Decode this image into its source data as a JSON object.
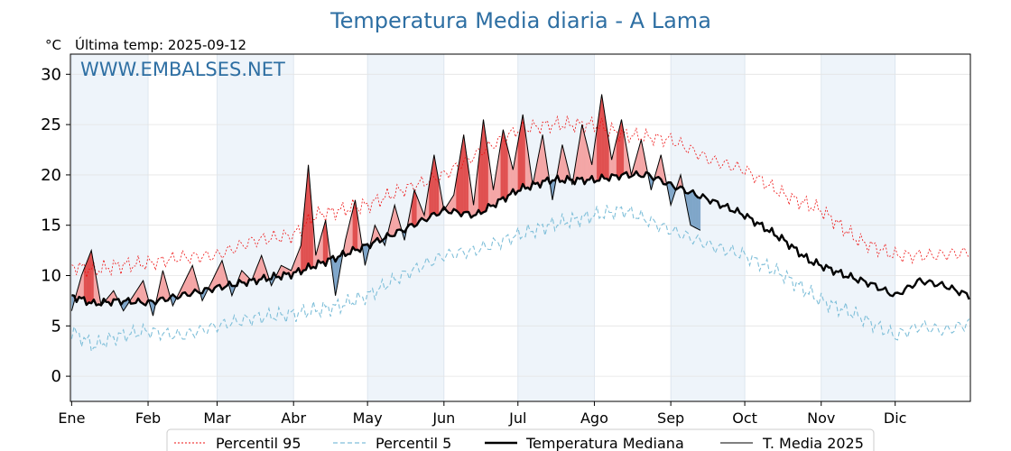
{
  "header": {
    "title": "Temperatura Media diaria - A Lama",
    "unit": "°C",
    "last_temp": "Última temp: 2025-09-12",
    "watermark": "WWW.EMBALSES.NET"
  },
  "colors": {
    "title": "#2e6fa3",
    "watermark": "#2e6fa3",
    "p95": "#ee1111",
    "p5": "#7fbfd9",
    "median": "#000000",
    "current": "#000000",
    "above_fill": "#f4a6a6",
    "above_strong": "#e05050",
    "below_fill": "#7fa6c9",
    "below_strong": "#2c5d8a",
    "month_band": "#eef4fa"
  },
  "chart_data": {
    "type": "line",
    "ylim": [
      -2.5,
      32
    ],
    "yticks": [
      0,
      5,
      10,
      15,
      20,
      25,
      30
    ],
    "months": [
      "Ene",
      "Feb",
      "Mar",
      "Abr",
      "May",
      "Jun",
      "Jul",
      "Ago",
      "Sep",
      "Oct",
      "Nov",
      "Dic"
    ],
    "month_start_days": [
      1,
      32,
      60,
      91,
      121,
      152,
      182,
      213,
      244,
      274,
      305,
      335
    ],
    "days_in_year": 365,
    "grid": true,
    "legend_position": "bottom",
    "series": [
      {
        "name": "Percentil 95",
        "style": "dotted-red",
        "keys": [
          [
            1,
            11.0
          ],
          [
            10,
            10.5
          ],
          [
            20,
            11.0
          ],
          [
            32,
            11.2
          ],
          [
            45,
            11.8
          ],
          [
            60,
            12.0
          ],
          [
            75,
            13.5
          ],
          [
            91,
            14.0
          ],
          [
            100,
            16.0
          ],
          [
            121,
            17.0
          ],
          [
            135,
            18.5
          ],
          [
            152,
            20.0
          ],
          [
            165,
            22.0
          ],
          [
            182,
            24.5
          ],
          [
            195,
            25.0
          ],
          [
            213,
            25.0
          ],
          [
            225,
            24.0
          ],
          [
            244,
            23.5
          ],
          [
            260,
            21.5
          ],
          [
            274,
            20.5
          ],
          [
            290,
            18.0
          ],
          [
            305,
            16.5
          ],
          [
            320,
            13.5
          ],
          [
            335,
            12.0
          ],
          [
            350,
            12.0
          ],
          [
            365,
            12.3
          ]
        ]
      },
      {
        "name": "Percentil 5",
        "style": "dashed-lightblue",
        "keys": [
          [
            1,
            4.5
          ],
          [
            10,
            3.0
          ],
          [
            20,
            4.0
          ],
          [
            32,
            4.5
          ],
          [
            45,
            4.0
          ],
          [
            60,
            5.0
          ],
          [
            75,
            5.8
          ],
          [
            91,
            6.2
          ],
          [
            110,
            7.0
          ],
          [
            121,
            8.0
          ],
          [
            135,
            10.0
          ],
          [
            152,
            12.0
          ],
          [
            165,
            12.5
          ],
          [
            182,
            14.0
          ],
          [
            195,
            15.0
          ],
          [
            213,
            16.0
          ],
          [
            225,
            16.5
          ],
          [
            244,
            14.5
          ],
          [
            260,
            13.0
          ],
          [
            274,
            12.0
          ],
          [
            290,
            10.0
          ],
          [
            305,
            7.5
          ],
          [
            320,
            6.0
          ],
          [
            335,
            4.0
          ],
          [
            345,
            5.0
          ],
          [
            355,
            4.5
          ],
          [
            365,
            5.3
          ]
        ]
      },
      {
        "name": "Temperatura Mediana",
        "style": "thick-black",
        "keys": [
          [
            1,
            8.0
          ],
          [
            10,
            7.2
          ],
          [
            20,
            7.5
          ],
          [
            32,
            7.3
          ],
          [
            45,
            8.0
          ],
          [
            60,
            8.8
          ],
          [
            75,
            9.5
          ],
          [
            91,
            10.2
          ],
          [
            105,
            11.5
          ],
          [
            121,
            13.0
          ],
          [
            135,
            14.5
          ],
          [
            152,
            16.5
          ],
          [
            165,
            16.0
          ],
          [
            182,
            18.5
          ],
          [
            195,
            19.5
          ],
          [
            213,
            19.5
          ],
          [
            225,
            20.0
          ],
          [
            235,
            20.0
          ],
          [
            244,
            19.0
          ],
          [
            260,
            17.5
          ],
          [
            274,
            16.0
          ],
          [
            290,
            13.5
          ],
          [
            300,
            11.5
          ],
          [
            305,
            11.0
          ],
          [
            315,
            10.0
          ],
          [
            325,
            9.2
          ],
          [
            335,
            8.0
          ],
          [
            345,
            9.5
          ],
          [
            355,
            9.0
          ],
          [
            365,
            8.0
          ]
        ]
      },
      {
        "name": "T. Media 2025",
        "style": "thin-black",
        "keys": [
          [
            1,
            6.5
          ],
          [
            5,
            10.0
          ],
          [
            9,
            12.5
          ],
          [
            13,
            7.0
          ],
          [
            18,
            8.5
          ],
          [
            22,
            6.5
          ],
          [
            26,
            8.0
          ],
          [
            30,
            9.5
          ],
          [
            34,
            6.0
          ],
          [
            38,
            10.5
          ],
          [
            42,
            7.0
          ],
          [
            46,
            9.0
          ],
          [
            50,
            11.0
          ],
          [
            54,
            7.5
          ],
          [
            58,
            9.5
          ],
          [
            62,
            11.5
          ],
          [
            66,
            8.0
          ],
          [
            70,
            10.5
          ],
          [
            74,
            9.5
          ],
          [
            78,
            12.0
          ],
          [
            82,
            9.0
          ],
          [
            86,
            11.0
          ],
          [
            90,
            10.5
          ],
          [
            94,
            13.0
          ],
          [
            97,
            21.0
          ],
          [
            100,
            12.0
          ],
          [
            104,
            15.5
          ],
          [
            108,
            8.0
          ],
          [
            112,
            13.5
          ],
          [
            116,
            17.5
          ],
          [
            120,
            11.0
          ],
          [
            124,
            15.0
          ],
          [
            128,
            13.0
          ],
          [
            132,
            17.0
          ],
          [
            136,
            13.5
          ],
          [
            140,
            18.5
          ],
          [
            144,
            16.0
          ],
          [
            148,
            22.0
          ],
          [
            152,
            16.5
          ],
          [
            156,
            18.0
          ],
          [
            160,
            24.0
          ],
          [
            164,
            17.0
          ],
          [
            168,
            25.5
          ],
          [
            172,
            18.5
          ],
          [
            176,
            24.5
          ],
          [
            180,
            20.5
          ],
          [
            184,
            26.0
          ],
          [
            188,
            19.0
          ],
          [
            192,
            24.0
          ],
          [
            196,
            17.5
          ],
          [
            200,
            23.0
          ],
          [
            204,
            19.0
          ],
          [
            208,
            25.0
          ],
          [
            212,
            21.0
          ],
          [
            216,
            28.0
          ],
          [
            220,
            21.5
          ],
          [
            224,
            25.5
          ],
          [
            228,
            20.0
          ],
          [
            232,
            23.5
          ],
          [
            236,
            18.5
          ],
          [
            240,
            22.0
          ],
          [
            244,
            17.0
          ],
          [
            248,
            20.0
          ],
          [
            252,
            15.0
          ],
          [
            256,
            14.5
          ]
        ]
      }
    ],
    "legend": [
      "Percentil 95",
      "Percentil 5",
      "Temperatura Mediana",
      "T. Media 2025"
    ]
  }
}
